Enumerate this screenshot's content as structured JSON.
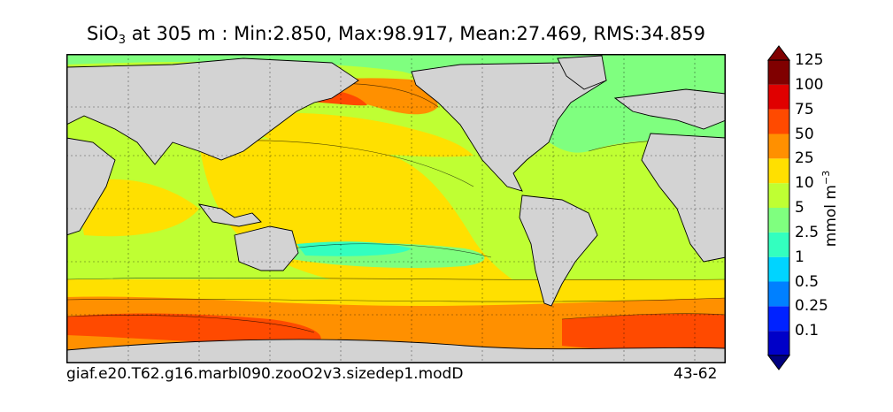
{
  "title": {
    "variable": "SiO",
    "subscript": "3",
    "rest": " at 305 m : Min:2.850, Max:98.917, Mean:27.469, RMS:34.859"
  },
  "footer": {
    "case_name": "giaf.e20.T62.g16.marbl090.zooO2v3.sizedep1.modD",
    "years": "43-62"
  },
  "colorbar": {
    "unit_text": "mmol m",
    "unit_sup": "−3",
    "levels": [
      "0.1",
      "0.25",
      "0.5",
      "1",
      "2.5",
      "5",
      "10",
      "25",
      "50",
      "75",
      "100",
      "125"
    ],
    "colors": [
      "#00007f",
      "#0000c8",
      "#0022ff",
      "#0080ff",
      "#00d4ff",
      "#33ffbf",
      "#7fff7f",
      "#bfff33",
      "#ffe000",
      "#ff9000",
      "#ff4a00",
      "#e00000",
      "#800000"
    ]
  },
  "chart_data": {
    "type": "heatmap",
    "title": "SiO3 at 305 m : Min:2.850, Max:98.917, Mean:27.469, RMS:34.859",
    "stats": {
      "depth_m": 305,
      "min": 2.85,
      "max": 98.917,
      "mean": 27.469,
      "rms": 34.859
    },
    "units": "mmol m^-3",
    "contour_levels": [
      0.1,
      0.25,
      0.5,
      1,
      2.5,
      5,
      10,
      25,
      50,
      75,
      100,
      125
    ],
    "colorbar_extend": "both",
    "grid": true,
    "land_color": "#d3d3d3",
    "xlabel": "",
    "ylabel": ""
  }
}
